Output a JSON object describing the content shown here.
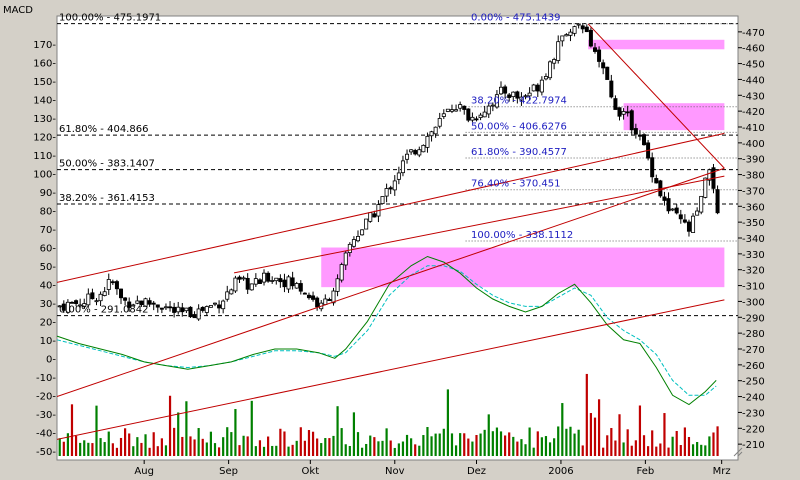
{
  "chart_data": {
    "type": "candlestick",
    "indicator_label": "MACD",
    "colors": {
      "background": "#ffffff",
      "frame": "#d4d0c8",
      "up_candle": "#ffffff",
      "candle_outline": "#000000",
      "trendline": "#c00000",
      "zone": "#ff99ff",
      "fib_text_blue": "#1c1cc0",
      "macd_line": "#008000",
      "signal_line": "#00c0c0",
      "volume_up": "#008000",
      "volume_down": "#c00000"
    },
    "price_axis": {
      "side": "right",
      "min": 200,
      "max": 480,
      "ticks": [
        210,
        220,
        230,
        240,
        250,
        260,
        270,
        280,
        290,
        300,
        310,
        320,
        330,
        340,
        350,
        360,
        370,
        380,
        390,
        400,
        410,
        420,
        430,
        440,
        450,
        460,
        470
      ]
    },
    "indicator_axis": {
      "side": "left",
      "min": -55,
      "max": 185,
      "ticks": [
        -50,
        -40,
        -30,
        -20,
        -10,
        0,
        10,
        20,
        30,
        40,
        50,
        60,
        70,
        80,
        90,
        100,
        110,
        120,
        130,
        140,
        150,
        160,
        170
      ]
    },
    "x_axis": {
      "labels": [
        {
          "label": "Aug",
          "day": 32
        },
        {
          "label": "Sep",
          "day": 63
        },
        {
          "label": "Okt",
          "day": 93
        },
        {
          "label": "Nov",
          "day": 124
        },
        {
          "label": "Dez",
          "day": 154
        },
        {
          "label": "2006",
          "day": 185
        },
        {
          "label": "Feb",
          "day": 216
        },
        {
          "label": "Mrz",
          "day": 244
        }
      ],
      "day_range": [
        0,
        250
      ]
    },
    "fib_left": [
      {
        "text": "100.00% - 475.1971",
        "price": 475.1971
      },
      {
        "text": "61.80% - 404.866",
        "price": 404.866
      },
      {
        "text": "50.00% - 383.1407",
        "price": 383.1407
      },
      {
        "text": "38.20% - 361.4153",
        "price": 361.4153
      },
      {
        "text": "0.00% - 291.0842",
        "price": 291.0842
      }
    ],
    "fib_right": [
      {
        "text": "0.00% - 475.1439",
        "price": 475.1439
      },
      {
        "text": "38.20% - 422.7974",
        "price": 422.7974
      },
      {
        "text": "50.00% - 406.6276",
        "price": 406.6276
      },
      {
        "text": "61.80% - 390.4577",
        "price": 390.4577
      },
      {
        "text": "76.40% - 370.451",
        "price": 370.451
      },
      {
        "text": "100.00% - 338.1112",
        "price": 338.1112
      }
    ],
    "zones": [
      {
        "day_from": 97,
        "day_to": 245,
        "price_low": 309,
        "price_high": 334
      },
      {
        "day_from": 195,
        "day_to": 245,
        "price_low": 459,
        "price_high": 465
      },
      {
        "day_from": 208,
        "day_to": 245,
        "price_low": 408,
        "price_high": 425
      }
    ],
    "trendlines": [
      {
        "day1": 0,
        "price1": 312,
        "day2": 245,
        "price2": 406
      },
      {
        "day1": 0,
        "price1": 240,
        "day2": 245,
        "price2": 384
      },
      {
        "day1": 0,
        "price1": 213,
        "day2": 245,
        "price2": 301
      },
      {
        "day1": 65,
        "price1": 318,
        "day2": 245,
        "price2": 379
      },
      {
        "day1": 195,
        "price1": 475,
        "day2": 245,
        "price2": 384
      }
    ],
    "price_anchors": [
      [
        0,
        297
      ],
      [
        10,
        300
      ],
      [
        16,
        305
      ],
      [
        20,
        313
      ],
      [
        24,
        300
      ],
      [
        30,
        300
      ],
      [
        38,
        298
      ],
      [
        45,
        292
      ],
      [
        52,
        294
      ],
      [
        60,
        300
      ],
      [
        66,
        312
      ],
      [
        72,
        310
      ],
      [
        78,
        316
      ],
      [
        84,
        313
      ],
      [
        90,
        308
      ],
      [
        97,
        296
      ],
      [
        103,
        312
      ],
      [
        108,
        338
      ],
      [
        115,
        352
      ],
      [
        122,
        372
      ],
      [
        128,
        390
      ],
      [
        134,
        400
      ],
      [
        140,
        412
      ],
      [
        146,
        425
      ],
      [
        152,
        415
      ],
      [
        158,
        423
      ],
      [
        164,
        433
      ],
      [
        170,
        428
      ],
      [
        176,
        435
      ],
      [
        180,
        447
      ],
      [
        184,
        462
      ],
      [
        188,
        472
      ],
      [
        192,
        474
      ],
      [
        196,
        462
      ],
      [
        200,
        448
      ],
      [
        204,
        425
      ],
      [
        208,
        418
      ],
      [
        212,
        410
      ],
      [
        216,
        395
      ],
      [
        220,
        375
      ],
      [
        224,
        358
      ],
      [
        228,
        352
      ],
      [
        232,
        345
      ],
      [
        236,
        360
      ],
      [
        240,
        388
      ],
      [
        243,
        345
      ]
    ],
    "indicator_anchors": {
      "macd": [
        [
          0,
          12
        ],
        [
          8,
          8
        ],
        [
          16,
          5
        ],
        [
          24,
          2
        ],
        [
          32,
          -2
        ],
        [
          40,
          -4
        ],
        [
          48,
          -6
        ],
        [
          56,
          -4
        ],
        [
          64,
          -2
        ],
        [
          72,
          2
        ],
        [
          80,
          5
        ],
        [
          88,
          5
        ],
        [
          96,
          3
        ],
        [
          102,
          0
        ],
        [
          106,
          5
        ],
        [
          114,
          20
        ],
        [
          122,
          40
        ],
        [
          130,
          50
        ],
        [
          136,
          55
        ],
        [
          142,
          52
        ],
        [
          148,
          46
        ],
        [
          154,
          38
        ],
        [
          160,
          32
        ],
        [
          166,
          28
        ],
        [
          172,
          25
        ],
        [
          178,
          28
        ],
        [
          184,
          35
        ],
        [
          190,
          40
        ],
        [
          196,
          30
        ],
        [
          202,
          18
        ],
        [
          208,
          10
        ],
        [
          214,
          8
        ],
        [
          220,
          -5
        ],
        [
          226,
          -20
        ],
        [
          232,
          -25
        ],
        [
          238,
          -18
        ],
        [
          242,
          -12
        ]
      ],
      "signal": [
        [
          0,
          10
        ],
        [
          8,
          7
        ],
        [
          16,
          4
        ],
        [
          24,
          1
        ],
        [
          32,
          -2
        ],
        [
          40,
          -4
        ],
        [
          48,
          -5
        ],
        [
          56,
          -4
        ],
        [
          64,
          -2
        ],
        [
          72,
          1
        ],
        [
          80,
          4
        ],
        [
          88,
          4
        ],
        [
          96,
          3
        ],
        [
          102,
          1
        ],
        [
          106,
          3
        ],
        [
          114,
          15
        ],
        [
          122,
          34
        ],
        [
          130,
          45
        ],
        [
          136,
          50
        ],
        [
          142,
          50
        ],
        [
          148,
          47
        ],
        [
          154,
          40
        ],
        [
          160,
          34
        ],
        [
          166,
          30
        ],
        [
          172,
          28
        ],
        [
          178,
          28
        ],
        [
          184,
          33
        ],
        [
          190,
          38
        ],
        [
          196,
          34
        ],
        [
          202,
          22
        ],
        [
          208,
          15
        ],
        [
          214,
          10
        ],
        [
          220,
          2
        ],
        [
          226,
          -12
        ],
        [
          232,
          -20
        ],
        [
          238,
          -20
        ],
        [
          242,
          -15
        ]
      ]
    }
  }
}
